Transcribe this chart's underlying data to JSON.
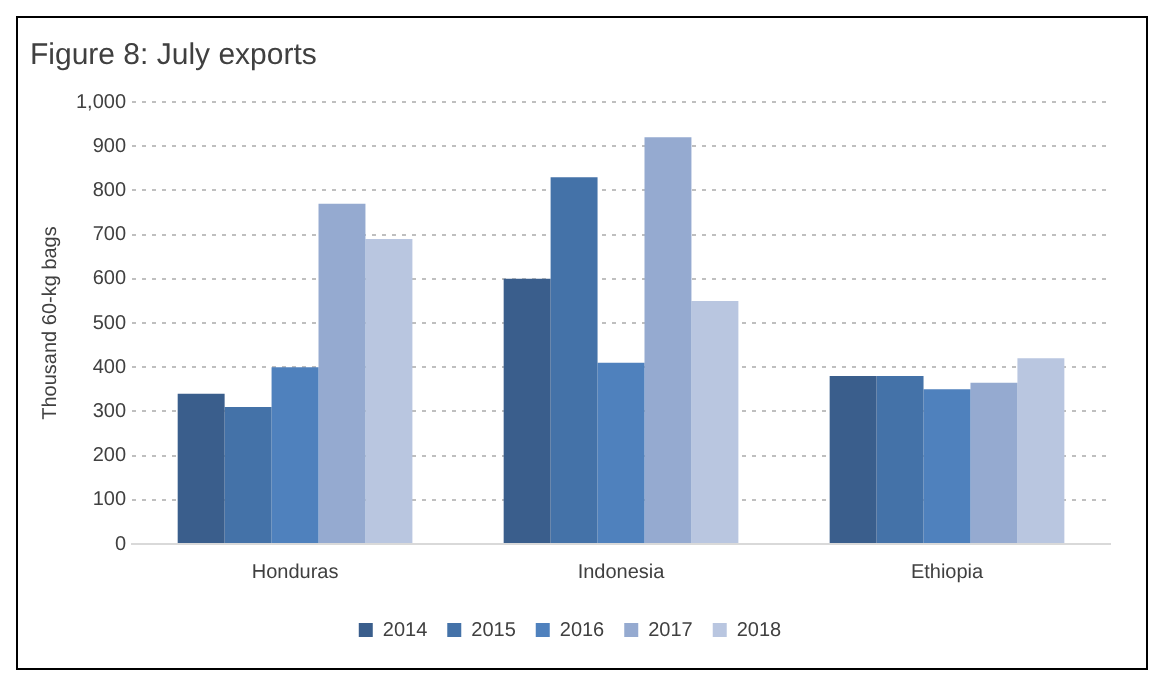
{
  "chart_data": {
    "type": "bar",
    "title": "Figure 8: July exports",
    "ylabel": "Thousand 60-kg bags",
    "categories": [
      "Honduras",
      "Indonesia",
      "Ethiopia"
    ],
    "series": [
      {
        "name": "2014",
        "color": "#3a5e8c",
        "values": [
          340,
          600,
          380
        ]
      },
      {
        "name": "2015",
        "color": "#4472a8",
        "values": [
          310,
          830,
          380
        ]
      },
      {
        "name": "2016",
        "color": "#4f81bd",
        "values": [
          400,
          410,
          350
        ]
      },
      {
        "name": "2017",
        "color": "#95aad0",
        "values": [
          770,
          920,
          365
        ]
      },
      {
        "name": "2018",
        "color": "#b9c6e0",
        "values": [
          690,
          550,
          420
        ]
      }
    ],
    "ylim": [
      0,
      1000
    ],
    "yticks": [
      0,
      100,
      200,
      300,
      400,
      500,
      600,
      700,
      800,
      900,
      {
        "value": 1000,
        "label": "1,000"
      }
    ],
    "grid": "y",
    "legend": "bottom"
  }
}
